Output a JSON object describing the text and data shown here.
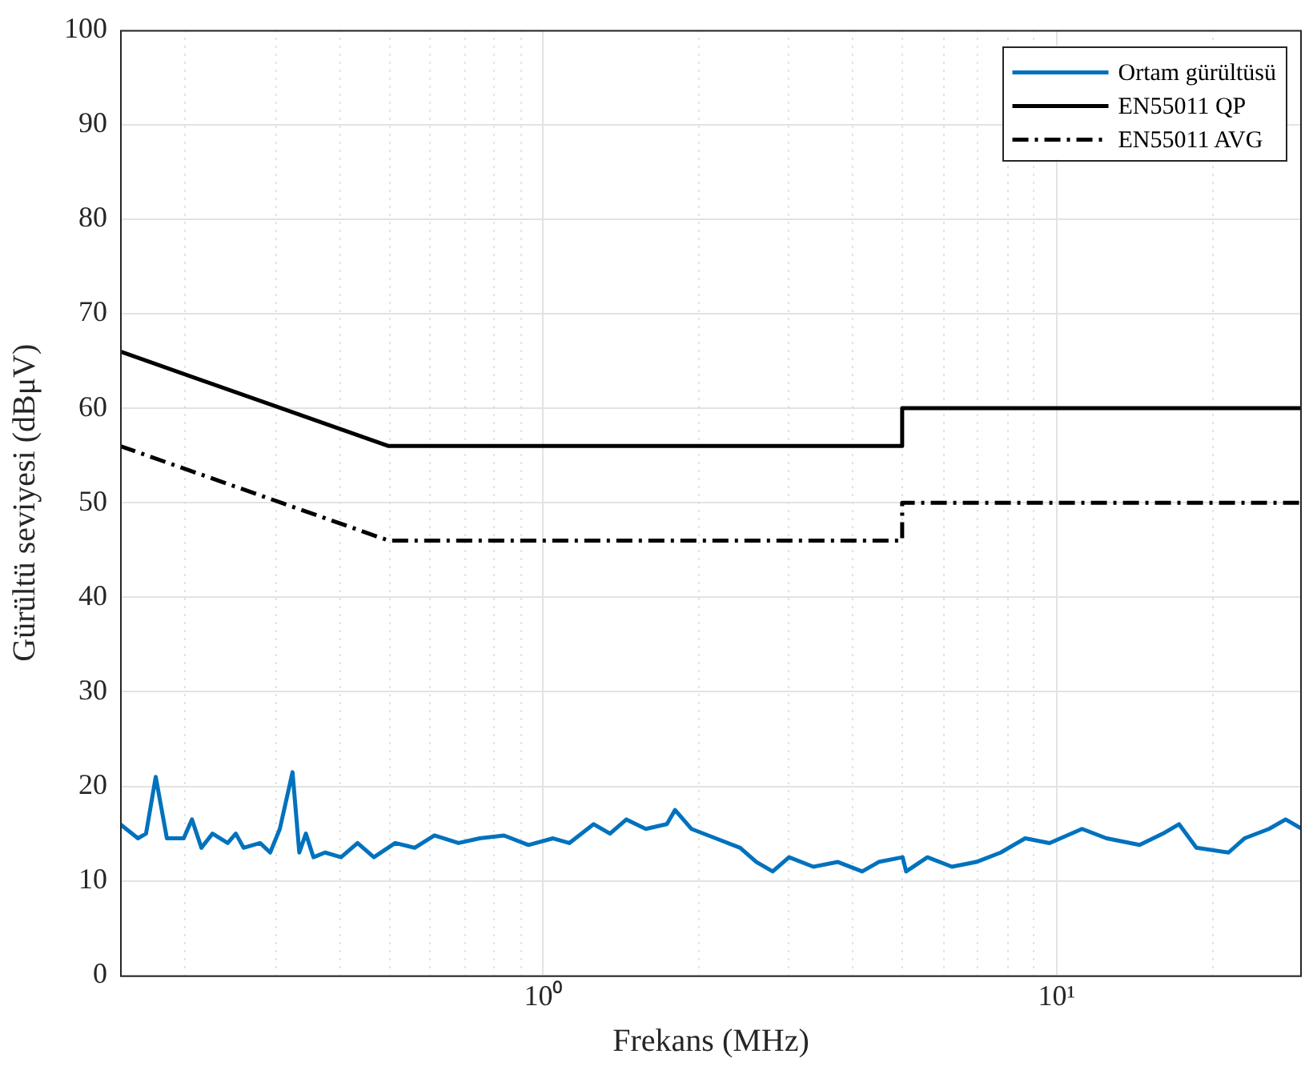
{
  "chart_data": {
    "type": "line",
    "xlabel": "Frekans (MHz)",
    "ylabel": "Gürültü seviyesi (dBμV)",
    "log": "x",
    "xlim": [
      0.15,
      30
    ],
    "ylim": [
      0,
      100
    ],
    "yticks": [
      0,
      10,
      20,
      30,
      40,
      50,
      60,
      70,
      80,
      90,
      100
    ],
    "xticks": [
      {
        "value": 0.2,
        "label": null
      },
      {
        "value": 0.3,
        "label": null
      },
      {
        "value": 0.4,
        "label": null
      },
      {
        "value": 0.5,
        "label": null
      },
      {
        "value": 0.6,
        "label": null
      },
      {
        "value": 0.7,
        "label": null
      },
      {
        "value": 0.8,
        "label": null
      },
      {
        "value": 0.9,
        "label": null
      },
      {
        "value": 1,
        "label": "10⁰"
      },
      {
        "value": 2,
        "label": null
      },
      {
        "value": 3,
        "label": null
      },
      {
        "value": 4,
        "label": null
      },
      {
        "value": 5,
        "label": null
      },
      {
        "value": 6,
        "label": null
      },
      {
        "value": 7,
        "label": null
      },
      {
        "value": 8,
        "label": null
      },
      {
        "value": 9,
        "label": null
      },
      {
        "value": 10,
        "label": "10¹"
      },
      {
        "value": 20,
        "label": null
      }
    ],
    "grid": true,
    "legend": "top right",
    "marker": "none",
    "series": [
      {
        "name": "Ortam gürültüsü",
        "color": "#0072bd",
        "line_style": "solid",
        "x": [
          0.15,
          0.1625,
          0.1685,
          0.176,
          0.185,
          0.1995,
          0.207,
          0.216,
          0.227,
          0.243,
          0.252,
          0.261,
          0.281,
          0.294,
          0.307,
          0.325,
          0.335,
          0.345,
          0.357,
          0.376,
          0.404,
          0.435,
          0.468,
          0.515,
          0.562,
          0.614,
          0.684,
          0.752,
          0.839,
          0.936,
          1.045,
          1.124,
          1.254,
          1.349,
          1.452,
          1.584,
          1.741,
          1.806,
          1.943,
          2.167,
          2.418,
          2.601,
          2.798,
          3.011,
          3.357,
          3.748,
          4.18,
          4.5,
          5.01,
          5.09,
          5.6,
          6.25,
          6.97,
          7.78,
          8.68,
          9.68,
          11.2,
          12.5,
          14.5,
          16.1,
          17.3,
          18.7,
          21.6,
          23.2,
          25.9,
          27.9,
          30
        ],
        "values": [
          16,
          14.5,
          15,
          21,
          14.5,
          14.5,
          16.5,
          13.5,
          15,
          14,
          15,
          13.5,
          14,
          13,
          15.5,
          21.5,
          13,
          15,
          12.5,
          13,
          12.5,
          14,
          12.5,
          14,
          13.5,
          14.8,
          14,
          14.5,
          14.8,
          13.8,
          14.5,
          14,
          16,
          15,
          16.5,
          15.5,
          16,
          17.5,
          15.5,
          14.5,
          13.5,
          12,
          11,
          12.5,
          11.5,
          12,
          11,
          12,
          12.5,
          11,
          12.5,
          11.5,
          12,
          13,
          14.5,
          14,
          15.5,
          14.5,
          13.8,
          15,
          16,
          13.5,
          13,
          14.5,
          15.5,
          16.5,
          15.5
        ]
      },
      {
        "name": "EN55011 QP",
        "color": "#000000",
        "line_style": "solid",
        "x": [
          0.15,
          0.5,
          5,
          5,
          30
        ],
        "values": [
          66,
          56,
          56,
          60,
          60
        ]
      },
      {
        "name": "EN55011 AVG",
        "color": "#000000",
        "line_style": "dashed",
        "x": [
          0.15,
          0.5,
          5,
          5,
          30
        ],
        "values": [
          56,
          46,
          46,
          50,
          50
        ]
      }
    ]
  }
}
